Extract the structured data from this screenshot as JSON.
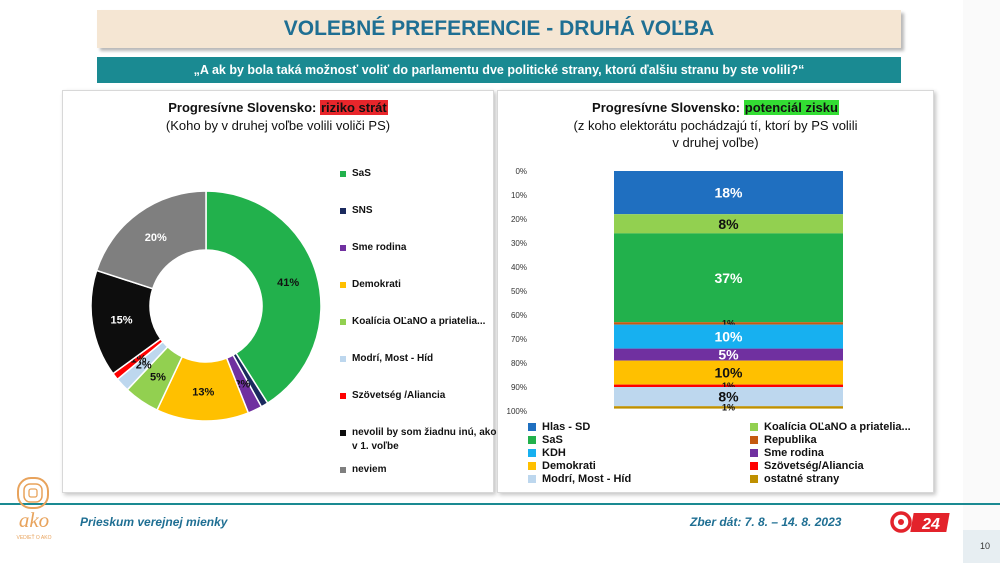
{
  "header": {
    "title": "VOLEBNÉ PREFERENCIE - DRUHÁ VOĽBA",
    "question": "„A ak by bola taká možnosť voliť do parlamentu dve politické strany, ktorú ďalšiu stranu by ste volili?“"
  },
  "left_panel": {
    "title_prefix": "Progresívne Slovensko: ",
    "title_highlight": "riziko strát",
    "subtitle": "(Koho by v druhej voľbe volili voliči PS)"
  },
  "right_panel": {
    "title_prefix": "Progresívne Slovensko: ",
    "title_highlight": "potenciál zisku",
    "subtitle_line1": "(z koho elektorátu pochádzajú tí, ktorí by PS volili",
    "subtitle_line2": "v druhej voľbe)"
  },
  "chart_data": [
    {
      "type": "pie",
      "variant": "donut",
      "categories": [
        "SaS",
        "SNS",
        "Sme rodina",
        "Demokrati",
        "Koalícia OĽaNO a priatelia...",
        "Modrí, Most - Híd",
        "Szövetség /Aliancia",
        "nevolil by som žiadnu inú, ako v 1. voľbe",
        "neviem"
      ],
      "values": [
        41,
        1,
        2,
        13,
        5,
        2,
        1,
        15,
        20
      ],
      "labels": [
        "41%",
        "",
        "2%",
        "13%",
        "5%",
        "2%",
        "1%",
        "15%",
        "20%"
      ],
      "colors": [
        "#22b14c",
        "#1b2a5e",
        "#7030a0",
        "#ffc000",
        "#92d050",
        "#bdd7ee",
        "#ff0000",
        "#0d0d0d",
        "#7f7f7f"
      ],
      "legend_position": "right"
    },
    {
      "type": "bar",
      "variant": "100% stacked, single column",
      "categories": [
        "PS"
      ],
      "series": [
        {
          "name": "Hlas - SD",
          "value": 18,
          "label": "18%",
          "color": "#1f6fc0"
        },
        {
          "name": "Koalícia OĽaNO a priatelia...",
          "value": 8,
          "label": "8%",
          "color": "#92d050"
        },
        {
          "name": "SaS",
          "value": 37,
          "label": "37%",
          "color": "#22b14c"
        },
        {
          "name": "Republika",
          "value": 1,
          "label": "1%",
          "color": "#c55a11"
        },
        {
          "name": "KDH",
          "value": 10,
          "label": "10%",
          "color": "#17b0f0"
        },
        {
          "name": "Sme rodina",
          "value": 5,
          "label": "5%",
          "color": "#7030a0"
        },
        {
          "name": "Demokrati",
          "value": 10,
          "label": "10%",
          "color": "#ffc000"
        },
        {
          "name": "Szövetség/Aliancia",
          "value": 1,
          "label": "1%",
          "color": "#ff0000"
        },
        {
          "name": "Modrí, Most - Híd",
          "value": 8,
          "label": "8%",
          "color": "#bdd7ee"
        },
        {
          "name": "ostatné strany",
          "value": 1,
          "label": "1%",
          "color": "#bf9000"
        }
      ],
      "yticks": [
        "0%",
        "10%",
        "20%",
        "30%",
        "40%",
        "50%",
        "60%",
        "70%",
        "80%",
        "90%",
        "100%"
      ],
      "ylim": [
        0,
        100
      ],
      "y_reversed": true,
      "legend_position": "bottom",
      "legend_order": [
        "Hlas - SD",
        "Koalícia OĽaNO a priatelia...",
        "SaS",
        "Republika",
        "KDH",
        "Sme rodina",
        "Demokrati",
        "Szövetség/Aliancia",
        "Modrí, Most - Híd",
        "ostatné strany"
      ]
    }
  ],
  "footer": {
    "survey": "Prieskum verejnej mienky",
    "date": "Zber dát: 7. 8. – 14. 8. 2023",
    "page": "10",
    "logo_text": "ako",
    "logo_tagline": "VEDIEŤ O AKO",
    "tv_logo_text": "24"
  }
}
